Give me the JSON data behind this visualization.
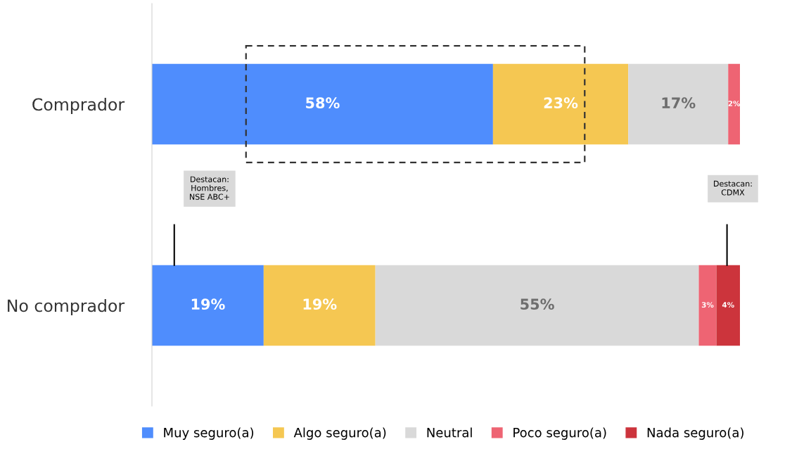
{
  "chart_data": {
    "type": "bar",
    "orientation": "horizontal",
    "stacked": true,
    "categories": [
      "Comprador",
      "No comprador"
    ],
    "series": [
      {
        "name": "Muy seguro(a)",
        "color": "#4f8dfd",
        "values": [
          58,
          19
        ],
        "value_labels": [
          "58%",
          "19%"
        ]
      },
      {
        "name": "Algo seguro(a)",
        "color": "#f5c752",
        "values": [
          23,
          19
        ],
        "value_labels": [
          "23%",
          "19%"
        ]
      },
      {
        "name": "Neutral",
        "color": "#d9d9d9",
        "values": [
          17,
          55
        ],
        "value_labels": [
          "17%",
          "55%"
        ]
      },
      {
        "name": "Poco seguro(a)",
        "color": "#ee6473",
        "values": [
          2,
          3
        ],
        "value_labels": [
          "2%",
          "3%"
        ]
      },
      {
        "name": "Nada seguro(a)",
        "color": "#cc343c",
        "values": [
          null,
          4
        ],
        "value_labels": [
          null,
          "4%"
        ]
      }
    ],
    "legend": "bottom",
    "annotations": [
      "Destacan:\nHombres,\nNSE ABC+",
      "Destacan:\nCDMX"
    ]
  }
}
